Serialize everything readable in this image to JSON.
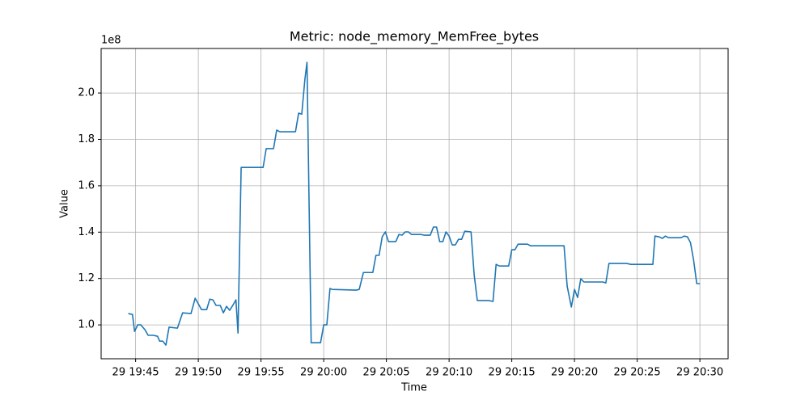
{
  "chart_data": {
    "type": "line",
    "title": "Metric: node_memory_MemFree_bytes",
    "x_label": "Time",
    "y_label": "Value",
    "y_offset_label": "1e8",
    "color": "#1f77b4",
    "grid": true,
    "xlim": [
      "29 19:42:15",
      "29 20:32:15"
    ],
    "xticks": [
      "29 19:45",
      "29 19:50",
      "29 19:55",
      "29 20:00",
      "29 20:05",
      "29 20:10",
      "29 20:15",
      "29 20:20",
      "29 20:25",
      "29 20:30"
    ],
    "ylim": [
      85400000,
      219200000
    ],
    "yticks": [
      {
        "value": 100000000,
        "label": "1.0"
      },
      {
        "value": 120000000,
        "label": "1.2"
      },
      {
        "value": 140000000,
        "label": "1.4"
      },
      {
        "value": 160000000,
        "label": "1.6"
      },
      {
        "value": 180000000,
        "label": "1.8"
      },
      {
        "value": 200000000,
        "label": "2.0"
      }
    ],
    "x": [
      "29 19:44:25",
      "29 19:44:45",
      "29 19:44:55",
      "29 19:45:10",
      "29 19:45:25",
      "29 19:45:45",
      "29 19:46:00",
      "29 19:46:25",
      "29 19:46:45",
      "29 19:46:55",
      "29 19:47:10",
      "29 19:47:25",
      "29 19:47:40",
      "29 19:48:20",
      "29 19:48:45",
      "29 19:49:25",
      "29 19:49:45",
      "29 19:50:00",
      "29 19:50:15",
      "29 19:50:40",
      "29 19:50:55",
      "29 19:51:10",
      "29 19:51:25",
      "29 19:51:45",
      "29 19:52:00",
      "29 19:52:15",
      "29 19:52:30",
      "29 19:52:45",
      "29 19:53:00",
      "29 19:53:10",
      "29 19:53:25",
      "29 19:55:10",
      "29 19:55:25",
      "29 19:56:00",
      "29 19:56:15",
      "29 19:56:30",
      "29 19:57:45",
      "29 19:58:00",
      "29 19:58:15",
      "29 19:58:30",
      "29 19:58:40",
      "29 19:59:00",
      "29 19:59:45",
      "29 20:00:00",
      "29 20:00:15",
      "29 20:00:30",
      "29 20:00:40",
      "29 20:02:35",
      "29 20:02:50",
      "29 20:03:10",
      "29 20:03:55",
      "29 20:04:10",
      "29 20:04:25",
      "29 20:04:40",
      "29 20:04:55",
      "29 20:05:10",
      "29 20:05:45",
      "29 20:06:00",
      "29 20:06:15",
      "29 20:06:30",
      "29 20:06:45",
      "29 20:07:00",
      "29 20:07:45",
      "29 20:08:00",
      "29 20:08:30",
      "29 20:08:45",
      "29 20:09:00",
      "29 20:09:15",
      "29 20:09:30",
      "29 20:09:45",
      "29 20:10:00",
      "29 20:10:15",
      "29 20:10:30",
      "29 20:10:45",
      "29 20:11:00",
      "29 20:11:15",
      "29 20:11:45",
      "29 20:12:00",
      "29 20:12:15",
      "29 20:13:10",
      "29 20:13:30",
      "29 20:13:45",
      "29 20:14:00",
      "29 20:14:45",
      "29 20:15:00",
      "29 20:15:15",
      "29 20:15:30",
      "29 20:16:15",
      "29 20:16:30",
      "29 20:19:10",
      "29 20:19:25",
      "29 20:19:45",
      "29 20:20:00",
      "29 20:20:15",
      "29 20:20:30",
      "29 20:20:45",
      "29 20:22:15",
      "29 20:22:30",
      "29 20:22:45",
      "29 20:24:10",
      "29 20:24:30",
      "29 20:26:15",
      "29 20:26:25",
      "29 20:26:45",
      "29 20:27:00",
      "29 20:27:15",
      "29 20:27:30",
      "29 20:28:30",
      "29 20:28:45",
      "29 20:29:00",
      "29 20:29:15",
      "29 20:29:30",
      "29 20:29:45",
      "29 20:30:00"
    ],
    "values": [
      104900000,
      104500000,
      97200000,
      100000000,
      100000000,
      97900000,
      95500000,
      95500000,
      95100000,
      93000000,
      93000000,
      91300000,
      99000000,
      98600000,
      105200000,
      104900000,
      111500000,
      109100000,
      106600000,
      106600000,
      111100000,
      110800000,
      108400000,
      108400000,
      105200000,
      108000000,
      106300000,
      108400000,
      110800000,
      96500000,
      167900000,
      167900000,
      176000000,
      176000000,
      184000000,
      183300000,
      183300000,
      191300000,
      190900000,
      205900000,
      213200000,
      92300000,
      92300000,
      100000000,
      100000000,
      115700000,
      115300000,
      115000000,
      115300000,
      122600000,
      122600000,
      130000000,
      130000000,
      138000000,
      140100000,
      135900000,
      135900000,
      139000000,
      138700000,
      140100000,
      140100000,
      139000000,
      139000000,
      138700000,
      138700000,
      142200000,
      142200000,
      135900000,
      135900000,
      140100000,
      138300000,
      134500000,
      134500000,
      136900000,
      136900000,
      140400000,
      140100000,
      121600000,
      110500000,
      110500000,
      110100000,
      126100000,
      125400000,
      125400000,
      132400000,
      132400000,
      134800000,
      134800000,
      134100000,
      134100000,
      116700000,
      107700000,
      115300000,
      111800000,
      119900000,
      118500000,
      118500000,
      118100000,
      126500000,
      126500000,
      126100000,
      126100000,
      138300000,
      138000000,
      137300000,
      138300000,
      137600000,
      137600000,
      138300000,
      138000000,
      135500000,
      127900000,
      117800000,
      117800000
    ]
  }
}
